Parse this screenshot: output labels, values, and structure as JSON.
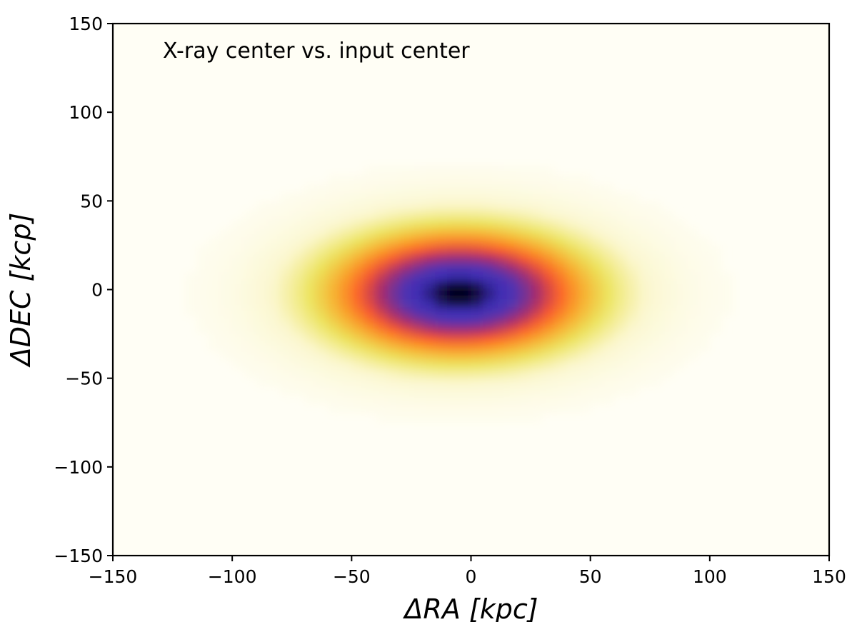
{
  "chart_data": {
    "type": "heatmap",
    "title": "",
    "annotation": "X-ray center vs. input center",
    "xlabel": "ΔRA [kpc]",
    "ylabel": "ΔDEC [kcp]",
    "xlim": [
      -150,
      150
    ],
    "ylim": [
      -150,
      150
    ],
    "x_ticks": [
      -150,
      -100,
      -50,
      0,
      50,
      100,
      150
    ],
    "y_ticks": [
      -150,
      -100,
      -50,
      0,
      50,
      100,
      150
    ],
    "x_tick_labels": [
      "−150",
      "−100",
      "−50",
      "0",
      "50",
      "100",
      "150"
    ],
    "y_tick_labels": [
      "−150",
      "−100",
      "−50",
      "0",
      "50",
      "100",
      "150"
    ],
    "colormap": "CMRmap_r",
    "grid": false,
    "density_peak": {
      "x": -5,
      "y": -2
    },
    "density_sigma": {
      "x": 34,
      "y": 22
    },
    "colors": [
      "#fffef5",
      "#fbf7cf",
      "#ece35a",
      "#f9a62a",
      "#fb5a2a",
      "#a72d6b",
      "#5434b0",
      "#3a2db5",
      "#000000"
    ]
  }
}
